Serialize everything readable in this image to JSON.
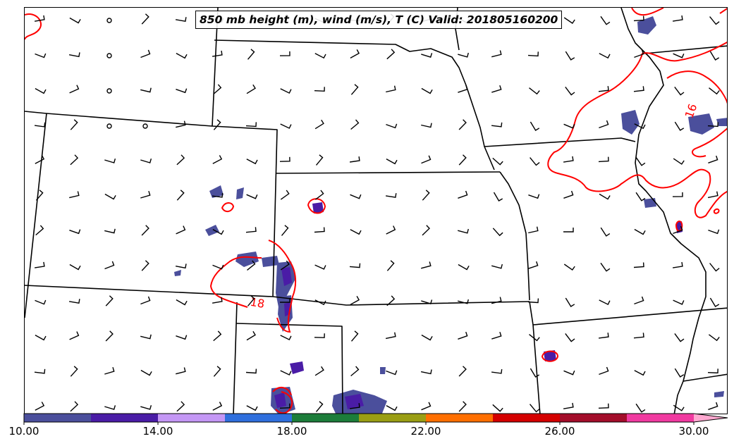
{
  "title": "850 mb height (m), wind (m/s), T (C) Valid: 201805160200",
  "contour_labels": [
    {
      "id": "contour-label-16",
      "text": "16"
    },
    {
      "id": "contour-label-18",
      "text": "18"
    }
  ],
  "colorbar": {
    "ticks": [
      "10.00",
      "14.00",
      "18.00",
      "22.00",
      "26.00",
      "30.00"
    ],
    "min": 10,
    "max": 30,
    "extend": "max",
    "colors": [
      "#4b4f9c",
      "#4a1ca6",
      "#c497f5",
      "#2f6fdd",
      "#1c7d3a",
      "#9a9e14",
      "#ff6f00",
      "#d40000",
      "#a30d2a",
      "#f03aa0",
      "#ffa8d0"
    ]
  },
  "legend_colors": {
    "temperature_contour": "#ff0000",
    "boundaries": "#000000",
    "wind_barbs": "#000000"
  }
}
